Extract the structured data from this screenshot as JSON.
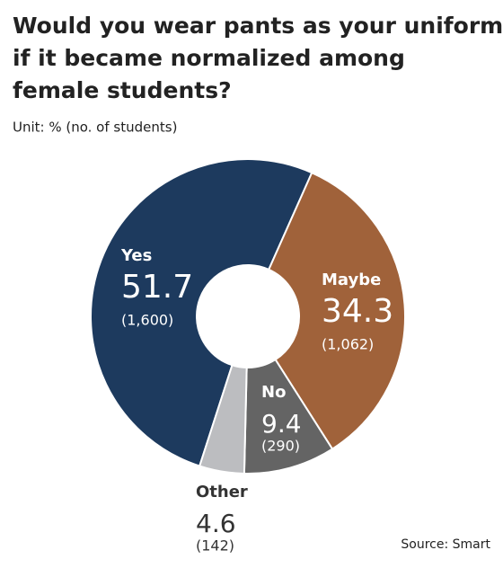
{
  "chart_data": {
    "type": "donut",
    "title": [
      "Would you wear pants as your uniform",
      "if it became normalized among",
      "female students?"
    ],
    "subtitle": "Unit: % (no. of students)",
    "source": "Source: Smart",
    "categories": [
      "Yes",
      "Maybe",
      "No",
      "Other"
    ],
    "values": [
      51.7,
      34.3,
      9.4,
      4.6
    ],
    "counts": [
      1600,
      1062,
      290,
      142
    ],
    "count_labels": [
      "(1,600)",
      "(1,062)",
      "(290)",
      "(142)"
    ],
    "colors": [
      "#1d3a5e",
      "#a0623a",
      "#646464",
      "#bcbdc0"
    ]
  }
}
